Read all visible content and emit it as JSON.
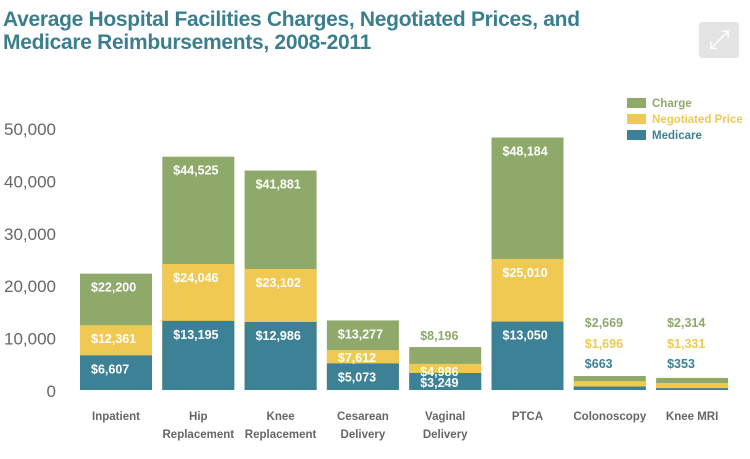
{
  "title": "Average Hospital Facilities Charges, Negotiated Prices, and Medicare Reimbursements, 2008-2011",
  "expand_icon": "expand-arrows-icon",
  "chart_data": {
    "type": "bar",
    "mode": "overlapping",
    "title": "Average Hospital Facilities Charges, Negotiated Prices, and Medicare Reimbursements, 2008-2011",
    "categories": [
      [
        "Inpatient"
      ],
      [
        "Hip",
        "Replacement"
      ],
      [
        "Knee",
        "Replacement"
      ],
      [
        "Cesarean",
        "Delivery"
      ],
      [
        "Vaginal",
        "Delivery"
      ],
      [
        "PTCA"
      ],
      [
        "Colonoscopy"
      ],
      [
        "Knee MRI"
      ]
    ],
    "series": [
      {
        "name": "Charge",
        "color": "#8fa96b",
        "values": [
          22200,
          44525,
          41881,
          13277,
          8196,
          48184,
          2669,
          2314
        ],
        "labels": [
          "$22,200",
          "$44,525",
          "$41,881",
          "$13,277",
          "$8,196",
          "$48,184",
          "$2,669",
          "$2,314"
        ]
      },
      {
        "name": "Negotiated Price",
        "color": "#f0c952",
        "values": [
          12361,
          24046,
          23102,
          7612,
          4986,
          25010,
          1696,
          1331
        ],
        "labels": [
          "$12,361",
          "$24,046",
          "$23,102",
          "$7,612",
          "$4,986",
          "$25,010",
          "$1,696",
          "$1,331"
        ]
      },
      {
        "name": "Medicare",
        "color": "#3d8196",
        "values": [
          6607,
          13195,
          12986,
          5073,
          3249,
          13050,
          663,
          353
        ],
        "labels": [
          "$6,607",
          "$13,195",
          "$12,986",
          "$5,073",
          "$3,249",
          "$13,050",
          "$663",
          "$353"
        ]
      }
    ],
    "yticks": [
      "0",
      "10,000",
      "20,000",
      "30,000",
      "40,000",
      "50,000"
    ],
    "ytick_values": [
      0,
      10000,
      20000,
      30000,
      40000,
      50000
    ],
    "ylim": [
      0,
      50000
    ],
    "grid": false,
    "legend": "top-right"
  }
}
